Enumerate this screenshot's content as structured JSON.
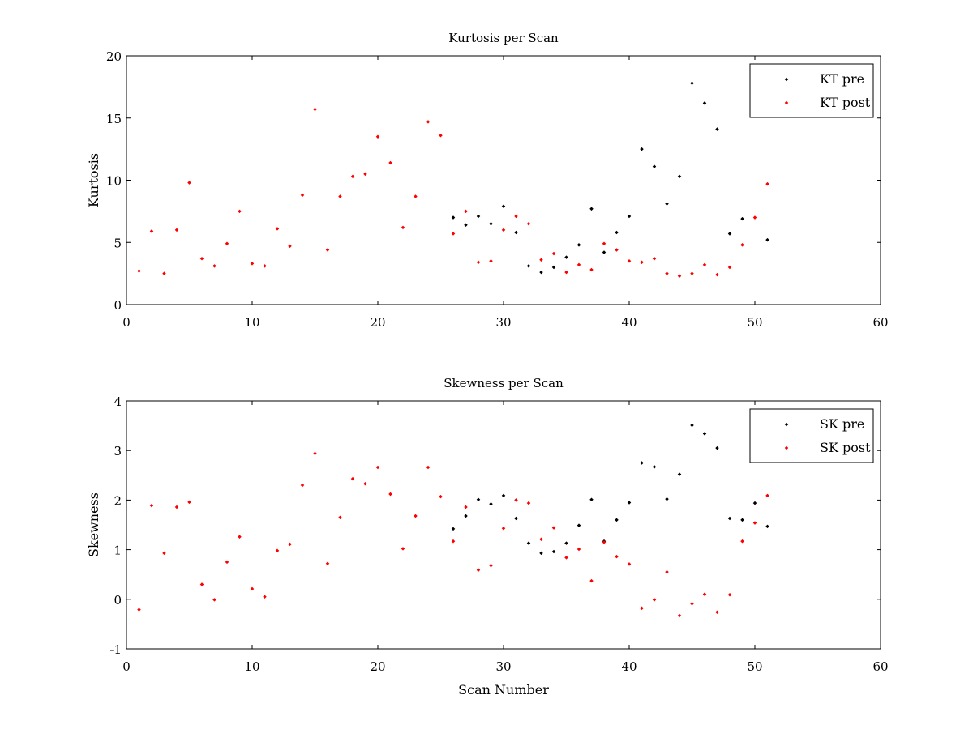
{
  "chart_data": [
    {
      "type": "scatter",
      "title": "Kurtosis per Scan",
      "xlabel": "",
      "ylabel": "Kurtosis",
      "xlim": [
        0,
        60
      ],
      "ylim": [
        0,
        20
      ],
      "xticks": [
        0,
        10,
        20,
        30,
        40,
        50,
        60
      ],
      "yticks": [
        0,
        5,
        10,
        15,
        20
      ],
      "grid": false,
      "legend_position": "top-right",
      "series": [
        {
          "name": "KT pre",
          "color": "#000000",
          "x": [
            26,
            27,
            28,
            29,
            30,
            31,
            32,
            33,
            34,
            35,
            36,
            37,
            38,
            39,
            40,
            41,
            42,
            43,
            44,
            45,
            46,
            47,
            48,
            49,
            51
          ],
          "y": [
            7.0,
            6.4,
            7.1,
            6.5,
            7.9,
            5.8,
            3.1,
            2.6,
            3.0,
            3.8,
            4.8,
            7.7,
            4.2,
            5.8,
            7.1,
            12.5,
            11.1,
            8.1,
            10.3,
            17.8,
            16.2,
            14.1,
            5.7,
            6.9,
            5.2
          ]
        },
        {
          "name": "KT post",
          "color": "#ff0000",
          "x": [
            1,
            2,
            3,
            4,
            5,
            6,
            7,
            8,
            9,
            10,
            11,
            12,
            13,
            14,
            15,
            16,
            17,
            18,
            19,
            20,
            21,
            22,
            23,
            24,
            25,
            26,
            27,
            28,
            29,
            30,
            31,
            32,
            33,
            34,
            35,
            36,
            37,
            38,
            39,
            40,
            41,
            42,
            43,
            44,
            45,
            46,
            47,
            48,
            49,
            50,
            51
          ],
          "y": [
            2.7,
            5.9,
            2.5,
            6.0,
            9.8,
            3.7,
            3.1,
            4.9,
            7.5,
            3.3,
            3.1,
            6.1,
            4.7,
            8.8,
            15.7,
            4.4,
            8.7,
            10.3,
            10.5,
            13.5,
            11.4,
            6.2,
            8.7,
            14.7,
            13.6,
            5.7,
            7.5,
            3.4,
            3.5,
            6.0,
            7.1,
            6.5,
            3.6,
            4.1,
            2.6,
            3.2,
            2.8,
            4.9,
            4.4,
            3.5,
            3.4,
            3.7,
            2.5,
            2.3,
            2.5,
            3.2,
            2.4,
            3.0,
            4.8,
            7.0,
            9.7
          ]
        }
      ]
    },
    {
      "type": "scatter",
      "title": "Skewness per Scan",
      "xlabel": "Scan Number",
      "ylabel": "Skewness",
      "xlim": [
        0,
        60
      ],
      "ylim": [
        -1,
        4
      ],
      "xticks": [
        0,
        10,
        20,
        30,
        40,
        50,
        60
      ],
      "yticks": [
        -1,
        0,
        1,
        2,
        3,
        4
      ],
      "grid": false,
      "legend_position": "top-right",
      "series": [
        {
          "name": "SK pre",
          "color": "#000000",
          "x": [
            26,
            27,
            28,
            29,
            30,
            31,
            32,
            33,
            34,
            35,
            36,
            37,
            38,
            39,
            40,
            41,
            42,
            43,
            44,
            45,
            46,
            47,
            48,
            49,
            50,
            51
          ],
          "y": [
            1.42,
            1.68,
            2.01,
            1.92,
            2.09,
            1.63,
            1.13,
            0.93,
            0.96,
            1.13,
            1.49,
            2.01,
            1.17,
            1.6,
            1.95,
            2.75,
            2.67,
            2.02,
            2.52,
            3.51,
            3.34,
            3.05,
            1.63,
            1.6,
            1.94,
            1.47
          ]
        },
        {
          "name": "SK post",
          "color": "#ff0000",
          "x": [
            1,
            2,
            3,
            4,
            5,
            6,
            7,
            8,
            9,
            10,
            11,
            12,
            13,
            14,
            15,
            16,
            17,
            18,
            19,
            20,
            21,
            22,
            23,
            24,
            25,
            26,
            27,
            28,
            29,
            30,
            31,
            32,
            33,
            34,
            35,
            36,
            37,
            38,
            39,
            40,
            41,
            42,
            43,
            44,
            45,
            46,
            47,
            48,
            49,
            50,
            51
          ],
          "y": [
            -0.21,
            1.89,
            0.93,
            1.86,
            1.96,
            0.3,
            -0.01,
            0.75,
            1.26,
            0.21,
            0.05,
            0.98,
            1.11,
            2.3,
            2.94,
            0.72,
            1.65,
            2.43,
            2.33,
            2.66,
            2.12,
            1.02,
            1.68,
            2.66,
            2.07,
            1.17,
            1.86,
            0.59,
            0.68,
            1.43,
            2.0,
            1.94,
            1.21,
            1.44,
            0.84,
            1.01,
            0.37,
            1.15,
            0.86,
            0.71,
            -0.18,
            -0.01,
            0.55,
            -0.33,
            -0.09,
            0.1,
            -0.26,
            0.09,
            1.17,
            1.54,
            2.09
          ]
        }
      ]
    }
  ]
}
